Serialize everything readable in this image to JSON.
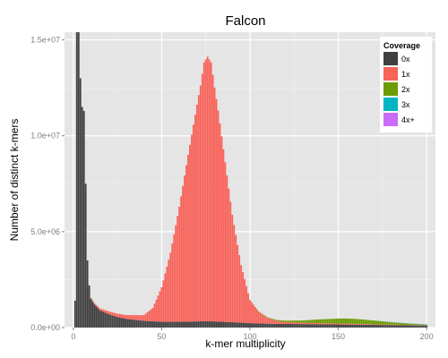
{
  "chart_data": {
    "type": "bar",
    "title": "Falcon",
    "xlabel": "k-mer multiplicity",
    "ylabel": "Number of distinct k-mers",
    "xlim": [
      -5,
      205
    ],
    "ylim": [
      0,
      15400000
    ],
    "x_ticks": [
      {
        "value": 0,
        "label": "0"
      },
      {
        "value": 50,
        "label": "50"
      },
      {
        "value": 100,
        "label": "100"
      },
      {
        "value": 150,
        "label": "150"
      },
      {
        "value": 200,
        "label": "200"
      }
    ],
    "y_ticks": [
      {
        "value": 0,
        "label": "0.0e+00"
      },
      {
        "value": 5000000,
        "label": "5.0e+06"
      },
      {
        "value": 10000000,
        "label": "1.0e+07"
      },
      {
        "value": 15000000,
        "label": "1.5e+07"
      }
    ],
    "grid": true,
    "stacked": true,
    "legend": {
      "title": "Coverage",
      "position": "top-right",
      "items": [
        {
          "label": "0x",
          "color": "#404040"
        },
        {
          "label": "1x",
          "color": "#f8635a"
        },
        {
          "label": "2x",
          "color": "#6c9c00"
        },
        {
          "label": "3x",
          "color": "#00b4c3"
        },
        {
          "label": "4x+",
          "color": "#c96cf9"
        }
      ]
    },
    "series": [
      {
        "name": "0x",
        "color": "#404040",
        "x": [
          1,
          2,
          3,
          4,
          5,
          6,
          7,
          8,
          9,
          10,
          12,
          15,
          20,
          25,
          30,
          40,
          50,
          60,
          70,
          75,
          80,
          90,
          100,
          110,
          120,
          130,
          140,
          150,
          160,
          170,
          180,
          190,
          200
        ],
        "values": [
          1400000,
          15400000,
          15400000,
          13000000,
          11500000,
          11300000,
          7500000,
          3500000,
          2200000,
          1500000,
          1200000,
          900000,
          700000,
          550000,
          450000,
          350000,
          300000,
          300000,
          320000,
          330000,
          320000,
          280000,
          230000,
          200000,
          190000,
          180000,
          170000,
          160000,
          150000,
          140000,
          130000,
          120000,
          100000
        ]
      },
      {
        "name": "1x",
        "color": "#f8635a",
        "x": [
          10,
          20,
          30,
          40,
          45,
          50,
          55,
          60,
          65,
          70,
          72,
          74,
          76,
          78,
          80,
          82,
          85,
          90,
          95,
          100,
          105,
          110,
          115,
          120,
          130,
          140,
          150,
          160,
          170,
          180,
          190,
          200
        ],
        "values": [
          50000,
          150000,
          200000,
          300000,
          700000,
          1800000,
          3600000,
          6000000,
          8700000,
          11300000,
          12300000,
          13500000,
          13800000,
          13500000,
          12200000,
          11000000,
          9000000,
          5600000,
          3000000,
          1200000,
          600000,
          300000,
          150000,
          100000,
          70000,
          60000,
          50000,
          40000,
          30000,
          20000,
          15000,
          10000
        ]
      },
      {
        "name": "2x",
        "color": "#6c9c00",
        "x": [
          100,
          110,
          120,
          130,
          140,
          150,
          155,
          160,
          170,
          180,
          190,
          200
        ],
        "values": [
          10000,
          30000,
          70000,
          120000,
          200000,
          260000,
          270000,
          260000,
          200000,
          130000,
          70000,
          40000
        ]
      },
      {
        "name": "3x",
        "color": "#00b4c3",
        "x": [
          170,
          180,
          190,
          200
        ],
        "values": [
          4000,
          7000,
          10000,
          15000
        ]
      },
      {
        "name": "4x+",
        "color": "#c96cf9",
        "x": [
          190,
          200
        ],
        "values": [
          3000,
          6000
        ]
      }
    ]
  }
}
